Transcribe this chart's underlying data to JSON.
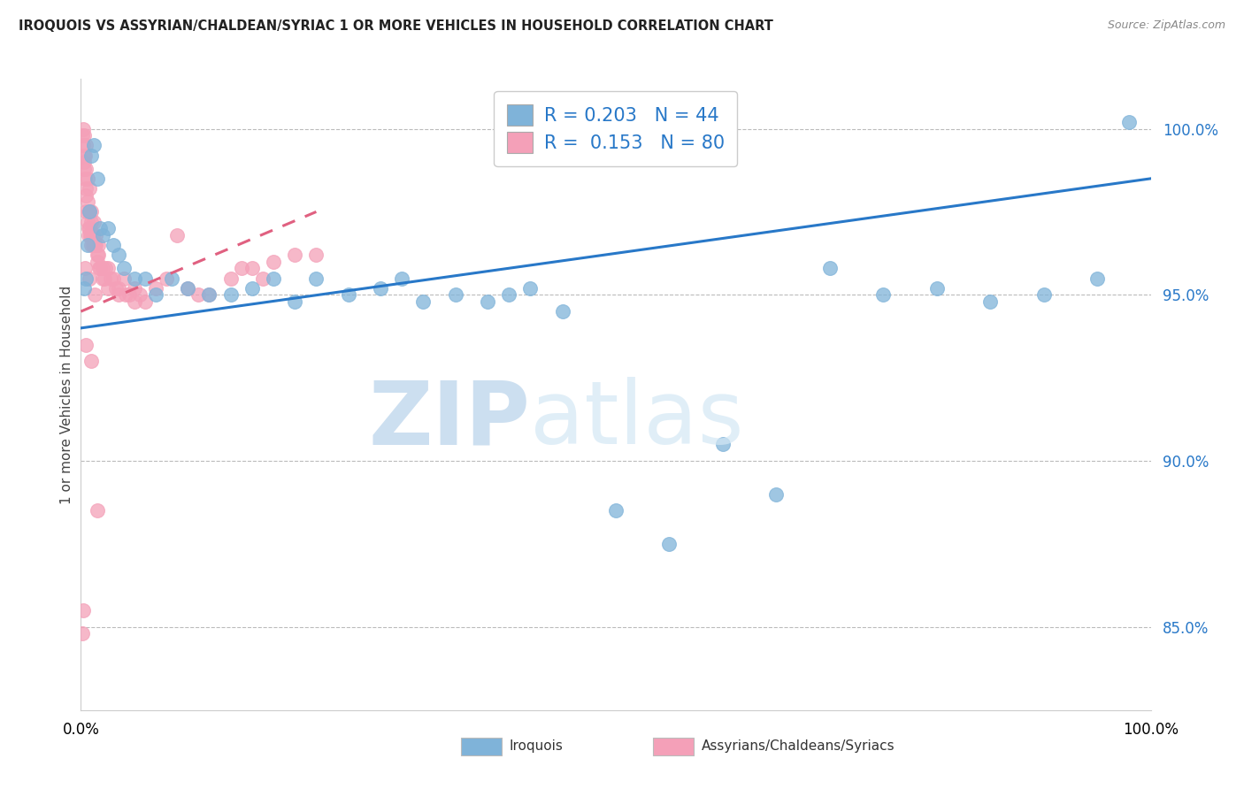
{
  "title": "IROQUOIS VS ASSYRIAN/CHALDEAN/SYRIAC 1 OR MORE VEHICLES IN HOUSEHOLD CORRELATION CHART",
  "source": "Source: ZipAtlas.com",
  "ylabel": "1 or more Vehicles in Household",
  "xlim": [
    0.0,
    100.0
  ],
  "ylim": [
    82.5,
    101.5
  ],
  "yticks": [
    85.0,
    90.0,
    95.0,
    100.0
  ],
  "ytick_labels": [
    "85.0%",
    "90.0%",
    "95.0%",
    "100.0%"
  ],
  "legend_blue_R": "0.203",
  "legend_blue_N": "44",
  "legend_pink_R": "0.153",
  "legend_pink_N": "80",
  "blue_color": "#7fb3d9",
  "pink_color": "#f4a0b8",
  "trend_blue_color": "#2878c8",
  "trend_pink_color": "#e06080",
  "blue_scatter_x": [
    0.3,
    0.5,
    0.6,
    0.8,
    1.0,
    1.2,
    1.5,
    1.8,
    2.0,
    2.5,
    3.0,
    3.5,
    4.0,
    5.0,
    6.0,
    7.0,
    8.5,
    10.0,
    12.0,
    14.0,
    16.0,
    18.0,
    20.0,
    22.0,
    25.0,
    28.0,
    30.0,
    32.0,
    35.0,
    38.0,
    40.0,
    42.0,
    45.0,
    50.0,
    55.0,
    60.0,
    65.0,
    70.0,
    75.0,
    80.0,
    85.0,
    90.0,
    95.0,
    98.0
  ],
  "blue_scatter_y": [
    95.2,
    95.5,
    96.5,
    97.5,
    99.2,
    99.5,
    98.5,
    97.0,
    96.8,
    97.0,
    96.5,
    96.2,
    95.8,
    95.5,
    95.5,
    95.0,
    95.5,
    95.2,
    95.0,
    95.0,
    95.2,
    95.5,
    94.8,
    95.5,
    95.0,
    95.2,
    95.5,
    94.8,
    95.0,
    94.8,
    95.0,
    95.2,
    94.5,
    88.5,
    87.5,
    90.5,
    89.0,
    95.8,
    95.0,
    95.2,
    94.8,
    95.0,
    95.5,
    100.2
  ],
  "pink_scatter_x": [
    0.1,
    0.2,
    0.2,
    0.3,
    0.3,
    0.4,
    0.4,
    0.5,
    0.5,
    0.5,
    0.6,
    0.6,
    0.7,
    0.7,
    0.8,
    0.8,
    0.9,
    1.0,
    1.0,
    1.0,
    1.1,
    1.2,
    1.3,
    1.4,
    1.5,
    1.5,
    1.6,
    1.7,
    1.8,
    2.0,
    2.0,
    2.2,
    2.5,
    2.8,
    3.0,
    3.5,
    4.0,
    4.5,
    5.0,
    5.5,
    6.0,
    7.0,
    8.0,
    9.0,
    10.0,
    11.0,
    12.0,
    14.0,
    15.0,
    16.0,
    17.0,
    18.0,
    20.0,
    22.0,
    0.3,
    0.5,
    0.6,
    0.8,
    1.0,
    1.2,
    1.4,
    1.6,
    2.3,
    3.3,
    4.2,
    0.3,
    0.5,
    0.7,
    1.1,
    0.2,
    0.5,
    1.0,
    1.5,
    0.4,
    0.8,
    1.3,
    2.5,
    3.5,
    5.0,
    0.1
  ],
  "pink_scatter_y": [
    99.8,
    100.0,
    99.5,
    99.8,
    98.8,
    99.2,
    98.5,
    99.5,
    98.2,
    97.5,
    97.8,
    97.2,
    97.5,
    97.0,
    97.5,
    97.0,
    96.8,
    97.2,
    96.8,
    96.5,
    96.8,
    96.5,
    96.5,
    96.5,
    96.2,
    96.0,
    96.2,
    95.8,
    95.8,
    95.8,
    95.5,
    95.5,
    95.8,
    95.5,
    95.5,
    95.2,
    95.5,
    95.0,
    95.2,
    95.0,
    94.8,
    95.2,
    95.5,
    96.8,
    95.2,
    95.0,
    95.0,
    95.5,
    95.8,
    95.8,
    95.5,
    96.0,
    96.2,
    96.2,
    99.0,
    98.8,
    98.5,
    98.2,
    97.5,
    97.2,
    96.8,
    96.5,
    95.8,
    95.2,
    95.0,
    99.2,
    98.0,
    96.8,
    96.5,
    85.5,
    93.5,
    93.0,
    88.5,
    95.8,
    95.5,
    95.0,
    95.2,
    95.0,
    94.8,
    84.8
  ],
  "trend_blue_start_x": 0.0,
  "trend_blue_end_x": 100.0,
  "trend_blue_start_y": 94.0,
  "trend_blue_end_y": 98.5,
  "trend_pink_start_x": 0.0,
  "trend_pink_end_x": 22.0,
  "trend_pink_start_y": 94.5,
  "trend_pink_end_y": 97.5
}
